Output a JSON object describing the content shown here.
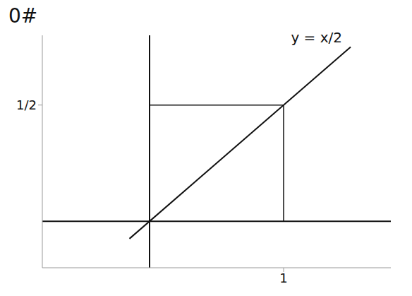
{
  "chart_data": {
    "type": "line",
    "title": "0#",
    "annotation": "y = x/2",
    "x": [
      -0.15,
      1.5
    ],
    "values": [
      -0.075,
      0.75
    ],
    "color": "#111111",
    "xlim": [
      -0.8,
      1.8
    ],
    "ylim": [
      -0.2,
      0.8
    ],
    "xticks": [
      1
    ],
    "yticks": [
      {
        "value": 0.5,
        "label": "1/2"
      }
    ],
    "grid": false
  }
}
